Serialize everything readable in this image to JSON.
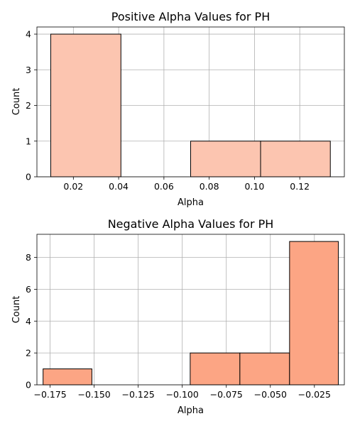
{
  "chart_data": [
    {
      "type": "bar",
      "title": "Positive Alpha Values for PH",
      "xlabel": "Alpha",
      "ylabel": "Count",
      "color": "#fcc5b0",
      "bins": [
        {
          "x0": 0.01,
          "x1": 0.041,
          "count": 4
        },
        {
          "x0": 0.041,
          "x1": 0.0718,
          "count": 0
        },
        {
          "x0": 0.0718,
          "x1": 0.1027,
          "count": 1
        },
        {
          "x0": 0.1027,
          "x1": 0.1335,
          "count": 1
        }
      ],
      "xlim": [
        0.0039,
        0.1397
      ],
      "ylim": [
        0,
        4.2
      ],
      "xticks": [
        0.02,
        0.04,
        0.06,
        0.08,
        0.1,
        0.12
      ],
      "xtick_labels": [
        "0.02",
        "0.04",
        "0.06",
        "0.08",
        "0.10",
        "0.12"
      ],
      "yticks": [
        0,
        1,
        2,
        3,
        4
      ],
      "ytick_labels": [
        "0",
        "1",
        "2",
        "3",
        "4"
      ],
      "grid": true
    },
    {
      "type": "bar",
      "title": "Negative Alpha Values for PH",
      "xlabel": "Alpha",
      "ylabel": "Count",
      "color": "#fca584",
      "bins": [
        {
          "x0": -0.179,
          "x1": -0.1513,
          "count": 1
        },
        {
          "x0": -0.1513,
          "x1": -0.1236,
          "count": 0
        },
        {
          "x0": -0.1236,
          "x1": -0.0955,
          "count": 0
        },
        {
          "x0": -0.0955,
          "x1": -0.0673,
          "count": 2
        },
        {
          "x0": -0.0673,
          "x1": -0.0391,
          "count": 2
        },
        {
          "x0": -0.0391,
          "x1": -0.0114,
          "count": 9
        }
      ],
      "xlim": [
        -0.1825,
        -0.008
      ],
      "ylim": [
        0,
        9.45
      ],
      "xticks": [
        -0.175,
        -0.15,
        -0.125,
        -0.1,
        -0.075,
        -0.05,
        -0.025
      ],
      "xtick_labels": [
        "−0.175",
        "−0.150",
        "−0.125",
        "−0.100",
        "−0.075",
        "−0.050",
        "−0.025"
      ],
      "yticks": [
        0,
        2,
        4,
        6,
        8
      ],
      "ytick_labels": [
        "0",
        "2",
        "4",
        "6",
        "8"
      ],
      "grid": true
    }
  ]
}
